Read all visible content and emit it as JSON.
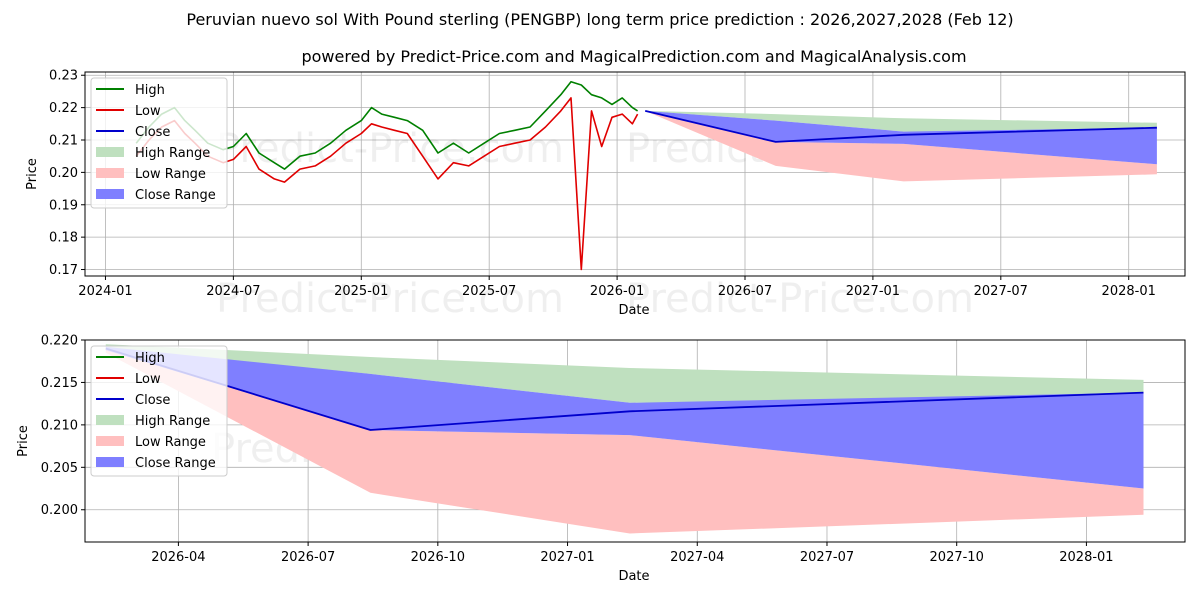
{
  "title": "Peruvian nuevo sol With Pound sterling (PENGBP) long term price prediction : 2026,2027,2028 (Feb 12)",
  "subtitle": "powered by Predict-Price.com and MagicalPrediction.com and MagicalAnalysis.com",
  "watermark": "Predict-Price.com",
  "colors": {
    "high": "#008000",
    "low": "#e00000",
    "close": "#0000cc",
    "high_range": "#bfe0bf",
    "low_range": "#ffbfbf",
    "close_range": "#7f7fff"
  },
  "chart_data": [
    {
      "type": "line",
      "panel": "overview",
      "xlabel": "Date",
      "ylabel": "Price",
      "xlim": [
        2023.92,
        2028.22
      ],
      "ylim": [
        0.168,
        0.231
      ],
      "grid": true,
      "legend_position": "upper-left",
      "legend": [
        "High",
        "Low",
        "Close",
        "High Range",
        "Low Range",
        "Close Range"
      ],
      "x_ticks": [
        {
          "x": 2024.0,
          "label": "2024-01"
        },
        {
          "x": 2024.5,
          "label": "2024-07"
        },
        {
          "x": 2025.0,
          "label": "2025-01"
        },
        {
          "x": 2025.5,
          "label": "2025-07"
        },
        {
          "x": 2026.0,
          "label": "2026-01"
        },
        {
          "x": 2026.5,
          "label": "2026-07"
        },
        {
          "x": 2027.0,
          "label": "2027-01"
        },
        {
          "x": 2027.5,
          "label": "2027-07"
        },
        {
          "x": 2028.0,
          "label": "2028-01"
        }
      ],
      "y_ticks": [
        {
          "y": 0.17,
          "label": "0.17"
        },
        {
          "y": 0.18,
          "label": "0.18"
        },
        {
          "y": 0.19,
          "label": "0.19"
        },
        {
          "y": 0.2,
          "label": "0.20"
        },
        {
          "y": 0.21,
          "label": "0.21"
        },
        {
          "y": 0.22,
          "label": "0.22"
        },
        {
          "y": 0.23,
          "label": "0.23"
        }
      ],
      "history_x": [
        2024.12,
        2024.17,
        2024.22,
        2024.27,
        2024.31,
        2024.35,
        2024.4,
        2024.46,
        2024.5,
        2024.55,
        2024.6,
        2024.66,
        2024.7,
        2024.76,
        2024.82,
        2024.88,
        2024.94,
        2025.0,
        2025.04,
        2025.08,
        2025.13,
        2025.18,
        2025.24,
        2025.3,
        2025.36,
        2025.42,
        2025.48,
        2025.54,
        2025.6,
        2025.66,
        2025.72,
        2025.78,
        2025.82,
        2025.86,
        2025.9,
        2025.94,
        2025.98,
        2026.02,
        2026.06,
        2026.08
      ],
      "history_high": [
        0.209,
        0.214,
        0.218,
        0.22,
        0.216,
        0.213,
        0.209,
        0.207,
        0.208,
        0.212,
        0.206,
        0.203,
        0.201,
        0.205,
        0.206,
        0.209,
        0.213,
        0.216,
        0.22,
        0.218,
        0.217,
        0.216,
        0.213,
        0.206,
        0.209,
        0.206,
        0.209,
        0.212,
        0.213,
        0.214,
        0.219,
        0.224,
        0.228,
        0.227,
        0.224,
        0.223,
        0.221,
        0.223,
        0.22,
        0.219
      ],
      "history_low": [
        0.205,
        0.21,
        0.214,
        0.216,
        0.212,
        0.209,
        0.205,
        0.203,
        0.204,
        0.208,
        0.201,
        0.198,
        0.197,
        0.201,
        0.202,
        0.205,
        0.209,
        0.212,
        0.215,
        0.214,
        0.213,
        0.212,
        0.205,
        0.198,
        0.203,
        0.202,
        0.205,
        0.208,
        0.209,
        0.21,
        0.214,
        0.219,
        0.223,
        0.17,
        0.219,
        0.208,
        0.217,
        0.218,
        0.215,
        0.218
      ],
      "forecast": {
        "x": [
          2026.11,
          2026.62,
          2027.12,
          2028.11
        ],
        "close": [
          0.219,
          0.2094,
          0.2116,
          0.2138
        ],
        "high_range_upper": [
          0.219,
          0.218,
          0.2167,
          0.2153
        ],
        "high_range_lower": [
          0.219,
          0.216,
          0.2126,
          0.213
        ],
        "low_range_upper": [
          0.219,
          0.2094,
          0.2088,
          0.2025
        ],
        "low_range_lower": [
          0.219,
          0.202,
          0.1972,
          0.1994
        ],
        "close_range_upper": [
          0.219,
          0.216,
          0.2126,
          0.2138
        ],
        "close_range_lower": [
          0.219,
          0.2094,
          0.2088,
          0.2025
        ]
      }
    },
    {
      "type": "line",
      "panel": "zoom",
      "xlabel": "Date",
      "ylabel": "Price",
      "xlim": [
        2026.07,
        2028.19
      ],
      "ylim": [
        0.1962,
        0.22
      ],
      "grid": true,
      "legend_position": "upper-left",
      "legend": [
        "High",
        "Low",
        "Close",
        "High Range",
        "Low Range",
        "Close Range"
      ],
      "x_ticks": [
        {
          "x": 2026.25,
          "label": "2026-04"
        },
        {
          "x": 2026.5,
          "label": "2026-07"
        },
        {
          "x": 2026.75,
          "label": "2026-10"
        },
        {
          "x": 2027.0,
          "label": "2027-01"
        },
        {
          "x": 2027.25,
          "label": "2027-04"
        },
        {
          "x": 2027.5,
          "label": "2027-07"
        },
        {
          "x": 2027.75,
          "label": "2027-10"
        },
        {
          "x": 2028.0,
          "label": "2028-01"
        }
      ],
      "y_ticks": [
        {
          "y": 0.2,
          "label": "0.200"
        },
        {
          "y": 0.205,
          "label": "0.205"
        },
        {
          "y": 0.21,
          "label": "0.210"
        },
        {
          "y": 0.215,
          "label": "0.215"
        },
        {
          "y": 0.22,
          "label": "0.220"
        }
      ],
      "forecast": {
        "x": [
          2026.11,
          2026.62,
          2027.12,
          2028.11
        ],
        "close": [
          0.219,
          0.2094,
          0.2116,
          0.2138
        ],
        "high_range_upper": [
          0.2195,
          0.218,
          0.2167,
          0.2153
        ],
        "high_range_lower": [
          0.219,
          0.216,
          0.2126,
          0.213
        ],
        "low_range_upper": [
          0.219,
          0.2094,
          0.2088,
          0.2025
        ],
        "low_range_lower": [
          0.2185,
          0.202,
          0.1972,
          0.1994
        ],
        "close_range_upper": [
          0.2192,
          0.216,
          0.2126,
          0.2138
        ],
        "close_range_lower": [
          0.2188,
          0.2094,
          0.2088,
          0.2025
        ]
      }
    }
  ]
}
